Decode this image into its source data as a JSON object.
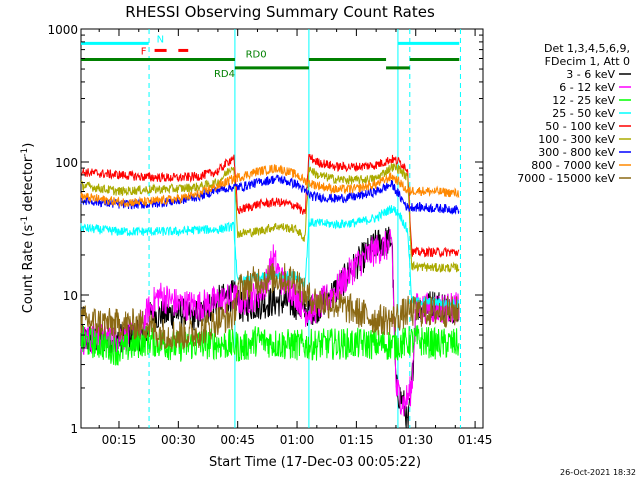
{
  "chart_data": {
    "type": "line",
    "title": "RHESSI Observing Summary Count Rates",
    "xlabel": "Start Time (17-Dec-03 00:05:22)",
    "ylabel_main": "Count Rate (s",
    "ylabel_sup1": "-1",
    "ylabel_mid": " detector",
    "ylabel_sup2": "-1",
    "ylabel_end": ")",
    "yscale": "log",
    "xlim": [
      5.4,
      107
    ],
    "ylim": [
      1,
      1000
    ],
    "xticks": [
      {
        "t": 15,
        "label": "00:15"
      },
      {
        "t": 30,
        "label": "00:30"
      },
      {
        "t": 45,
        "label": "00:45"
      },
      {
        "t": 60,
        "label": "01:00"
      },
      {
        "t": 75,
        "label": "01:15"
      },
      {
        "t": 90,
        "label": "01:30"
      },
      {
        "t": 105,
        "label": "01:45"
      }
    ],
    "yticks": [
      {
        "v": 1,
        "label": "1"
      },
      {
        "v": 10,
        "label": "10"
      },
      {
        "v": 100,
        "label": "100"
      },
      {
        "v": 1000,
        "label": "1000"
      }
    ],
    "legend_header": [
      "Det 1,3,4,5,6,9,",
      "FDecim 1, Att 0"
    ],
    "series": [
      {
        "name": "3 - 6 keV",
        "color": "#000000",
        "points": [
          [
            5.4,
            4.6
          ],
          [
            22,
            5
          ],
          [
            23,
            7
          ],
          [
            30,
            7.3
          ],
          [
            35,
            7
          ],
          [
            40,
            9
          ],
          [
            44,
            10
          ],
          [
            46,
            8
          ],
          [
            50,
            8.5
          ],
          [
            55,
            9
          ],
          [
            60,
            8.5
          ],
          [
            62,
            7.5
          ],
          [
            65,
            8
          ],
          [
            70,
            11
          ],
          [
            75,
            17
          ],
          [
            80,
            24
          ],
          [
            84,
            26
          ],
          [
            85,
            2
          ],
          [
            87,
            1.5
          ],
          [
            88,
            1
          ],
          [
            89,
            2
          ],
          [
            90,
            8
          ],
          [
            95,
            8.5
          ],
          [
            101,
            8
          ]
        ]
      },
      {
        "name": "6 - 12 keV",
        "color": "#ff00ff",
        "points": [
          [
            5.4,
            4.6
          ],
          [
            20,
            5
          ],
          [
            22,
            7.2
          ],
          [
            25,
            10
          ],
          [
            30,
            8.5
          ],
          [
            35,
            8.3
          ],
          [
            40,
            9
          ],
          [
            44,
            9.5
          ],
          [
            46,
            9
          ],
          [
            50,
            10
          ],
          [
            52,
            12
          ],
          [
            54,
            19
          ],
          [
            56,
            13
          ],
          [
            60,
            10
          ],
          [
            62,
            7.5
          ],
          [
            65,
            8
          ],
          [
            70,
            11
          ],
          [
            75,
            17
          ],
          [
            80,
            22
          ],
          [
            84,
            24
          ],
          [
            85,
            2
          ],
          [
            87,
            1.5
          ],
          [
            89,
            2
          ],
          [
            90,
            8
          ],
          [
            95,
            8
          ],
          [
            101,
            8
          ]
        ]
      },
      {
        "name": "12 - 25 keV",
        "color": "#00ff00",
        "points": [
          [
            5.4,
            4.5
          ],
          [
            10,
            4.3
          ],
          [
            15,
            3.8
          ],
          [
            22,
            4.6
          ],
          [
            30,
            4.1
          ],
          [
            35,
            4.3
          ],
          [
            40,
            4.3
          ],
          [
            44,
            4.2
          ],
          [
            46,
            4
          ],
          [
            50,
            4.6
          ],
          [
            55,
            4.3
          ],
          [
            60,
            4.2
          ],
          [
            62,
            4.2
          ],
          [
            70,
            4.3
          ],
          [
            80,
            4.3
          ],
          [
            84,
            4.2
          ],
          [
            85,
            4.2
          ],
          [
            90,
            4.6
          ],
          [
            95,
            4.3
          ],
          [
            101,
            4.3
          ]
        ]
      },
      {
        "name": "25 - 50 keV",
        "color": "#00ffff",
        "points": [
          [
            5.4,
            32
          ],
          [
            15,
            30
          ],
          [
            22,
            30
          ],
          [
            30,
            30
          ],
          [
            35,
            31
          ],
          [
            40,
            31
          ],
          [
            44,
            33
          ],
          [
            45,
            12.5
          ],
          [
            50,
            13.5
          ],
          [
            55,
            14
          ],
          [
            60,
            14
          ],
          [
            62,
            12
          ],
          [
            63,
            35
          ],
          [
            70,
            34
          ],
          [
            75,
            35
          ],
          [
            80,
            38
          ],
          [
            84,
            45
          ],
          [
            86,
            40
          ],
          [
            88,
            30
          ],
          [
            89,
            9
          ],
          [
            95,
            8.8
          ],
          [
            101,
            8.6
          ]
        ]
      },
      {
        "name": "50 - 100 keV",
        "color": "#ff0000",
        "points": [
          [
            5.4,
            84
          ],
          [
            15,
            80
          ],
          [
            22,
            77
          ],
          [
            30,
            76
          ],
          [
            35,
            78
          ],
          [
            40,
            85
          ],
          [
            44,
            110
          ],
          [
            45,
            43
          ],
          [
            50,
            48
          ],
          [
            55,
            50
          ],
          [
            60,
            47
          ],
          [
            62,
            40
          ],
          [
            63,
            110
          ],
          [
            65,
            100
          ],
          [
            70,
            92
          ],
          [
            75,
            92
          ],
          [
            80,
            95
          ],
          [
            84,
            105
          ],
          [
            86,
            100
          ],
          [
            88,
            88
          ],
          [
            89,
            21
          ],
          [
            95,
            21
          ],
          [
            101,
            21
          ]
        ]
      },
      {
        "name": "100 - 300 keV",
        "color": "#aaaa00",
        "points": [
          [
            5.4,
            67
          ],
          [
            15,
            60
          ],
          [
            22,
            62
          ],
          [
            30,
            63
          ],
          [
            35,
            65
          ],
          [
            40,
            70
          ],
          [
            44,
            95
          ],
          [
            45,
            29
          ],
          [
            50,
            30
          ],
          [
            55,
            33
          ],
          [
            60,
            31
          ],
          [
            62,
            26
          ],
          [
            63,
            90
          ],
          [
            65,
            80
          ],
          [
            70,
            74
          ],
          [
            75,
            73
          ],
          [
            80,
            75
          ],
          [
            84,
            92
          ],
          [
            86,
            88
          ],
          [
            88,
            75
          ],
          [
            89,
            16.5
          ],
          [
            95,
            16
          ],
          [
            101,
            16
          ]
        ]
      },
      {
        "name": "300 - 800 keV",
        "color": "#0000ff",
        "points": [
          [
            5.4,
            52
          ],
          [
            15,
            48
          ],
          [
            22,
            48
          ],
          [
            30,
            51
          ],
          [
            35,
            55
          ],
          [
            40,
            62
          ],
          [
            44,
            65
          ],
          [
            46,
            65
          ],
          [
            50,
            70
          ],
          [
            55,
            75
          ],
          [
            60,
            68
          ],
          [
            62,
            60
          ],
          [
            64,
            55
          ],
          [
            70,
            53
          ],
          [
            75,
            55
          ],
          [
            80,
            60
          ],
          [
            84,
            68
          ],
          [
            86,
            55
          ],
          [
            88,
            45
          ],
          [
            89,
            46
          ],
          [
            95,
            45
          ],
          [
            101,
            44
          ]
        ]
      },
      {
        "name": "800 - 7000 keV",
        "color": "#ff8800",
        "points": [
          [
            5.4,
            55
          ],
          [
            15,
            50
          ],
          [
            22,
            50
          ],
          [
            30,
            53
          ],
          [
            35,
            57
          ],
          [
            40,
            66
          ],
          [
            44,
            75
          ],
          [
            46,
            78
          ],
          [
            50,
            85
          ],
          [
            55,
            90
          ],
          [
            60,
            80
          ],
          [
            62,
            72
          ],
          [
            64,
            68
          ],
          [
            70,
            62
          ],
          [
            75,
            63
          ],
          [
            80,
            68
          ],
          [
            84,
            78
          ],
          [
            86,
            70
          ],
          [
            88,
            60
          ],
          [
            89,
            61
          ],
          [
            95,
            60
          ],
          [
            101,
            58
          ]
        ]
      },
      {
        "name": "7000 - 15000 keV",
        "color": "#8b6914",
        "points": [
          [
            5.4,
            6.5
          ],
          [
            10,
            6.2
          ],
          [
            15,
            6
          ],
          [
            22,
            6
          ],
          [
            25,
            5.2
          ],
          [
            30,
            5
          ],
          [
            35,
            5.2
          ],
          [
            40,
            6.5
          ],
          [
            44,
            7
          ],
          [
            45,
            11
          ],
          [
            50,
            13
          ],
          [
            55,
            13.5
          ],
          [
            60,
            13
          ],
          [
            62,
            10
          ],
          [
            65,
            9
          ],
          [
            70,
            8.5
          ],
          [
            75,
            7.5
          ],
          [
            80,
            6.5
          ],
          [
            84,
            6.5
          ],
          [
            86,
            7
          ],
          [
            88,
            7.5
          ],
          [
            95,
            7.5
          ],
          [
            101,
            7.5
          ]
        ]
      }
    ],
    "flag_lines": [
      {
        "name": "N",
        "color": "#00ffff",
        "segments": [
          [
            5.4,
            22.5
          ],
          [
            85.5,
            101
          ]
        ],
        "y": 780
      },
      {
        "name": "F",
        "color": "#ff0000",
        "segments": [
          [
            24,
            28
          ],
          [
            30,
            32.5
          ]
        ],
        "y": 690
      },
      {
        "name": "RD0",
        "color": "#008000",
        "segments": [
          [
            5.4,
            44.3
          ],
          [
            63,
            82.5
          ],
          [
            88.5,
            101
          ]
        ],
        "y": 590
      },
      {
        "name": "RD4",
        "color": "#008000",
        "segments": [
          [
            44.3,
            63
          ],
          [
            82.5,
            88.5
          ]
        ],
        "y": 510
      }
    ],
    "vlines": [
      {
        "t": 22.6,
        "color": "#00ffff",
        "dash": true
      },
      {
        "t": 44.3,
        "color": "#00ffff",
        "dash": false
      },
      {
        "t": 63.0,
        "color": "#00ffff",
        "dash": false
      },
      {
        "t": 85.5,
        "color": "#00ffff",
        "dash": false
      },
      {
        "t": 88.5,
        "color": "#00ffff",
        "dash": true
      },
      {
        "t": 101.3,
        "color": "#00ffff",
        "dash": true
      }
    ],
    "timestamp": "26-Oct-2021 18:32"
  }
}
